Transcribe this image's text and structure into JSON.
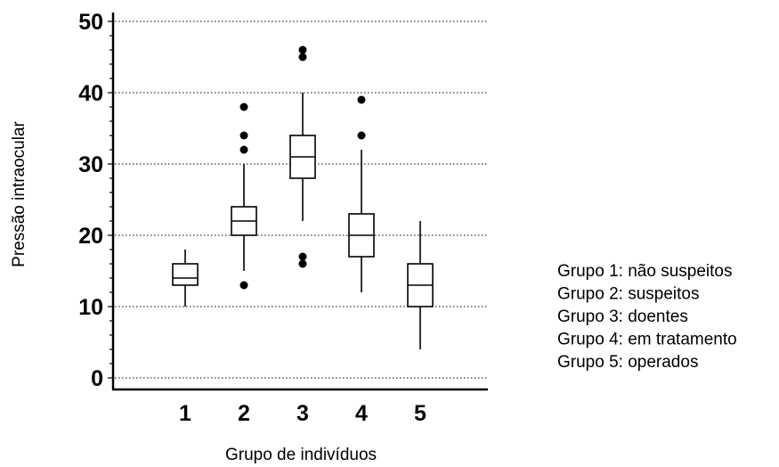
{
  "chart_data": {
    "type": "boxplot",
    "xlabel": "Grupo de indivíduos",
    "ylabel": "Pressão intraocular",
    "ylim": [
      0,
      50
    ],
    "yticks": [
      0,
      10,
      20,
      30,
      40,
      50
    ],
    "grid": "horizontal-dotted",
    "legend_position": "right",
    "categories": [
      "1",
      "2",
      "3",
      "4",
      "5"
    ],
    "boxes": [
      {
        "group": "1",
        "whisker_low": 10,
        "q1": 13,
        "median": 14,
        "q3": 16,
        "whisker_high": 18,
        "outliers": []
      },
      {
        "group": "2",
        "whisker_low": 15,
        "q1": 20,
        "median": 22,
        "q3": 24,
        "whisker_high": 30,
        "outliers": [
          13,
          32,
          34,
          38
        ]
      },
      {
        "group": "3",
        "whisker_low": 22,
        "q1": 28,
        "median": 31,
        "q3": 34,
        "whisker_high": 40,
        "outliers": [
          16,
          17,
          45,
          46
        ]
      },
      {
        "group": "4",
        "whisker_low": 12,
        "q1": 17,
        "median": 20,
        "q3": 23,
        "whisker_high": 32,
        "outliers": [
          34,
          39
        ]
      },
      {
        "group": "5",
        "whisker_low": 4,
        "q1": 10,
        "median": 13,
        "q3": 16,
        "whisker_high": 22,
        "outliers": []
      }
    ],
    "legend": [
      "Grupo 1: não suspeitos",
      "Grupo 2: suspeitos",
      "Grupo 3: doentes",
      "Grupo 4: em tratamento",
      "Grupo 5: operados"
    ]
  }
}
